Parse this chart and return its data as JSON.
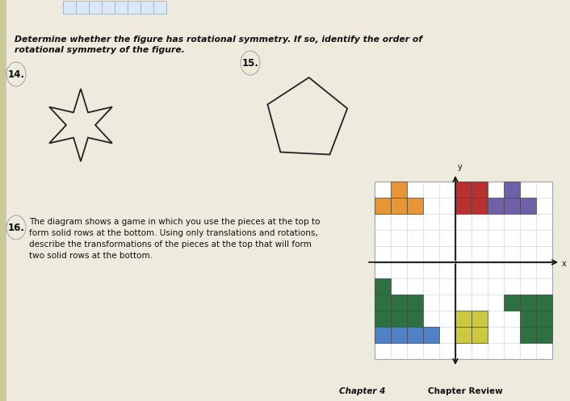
{
  "bg_color": "#cbc89a",
  "paper_color": "#eeeade",
  "title_text1": "Determine whether the figure has rotational symmetry. If so, identify the order of",
  "title_text2": "rotational symmetry of the figure.",
  "label_14": "14.",
  "label_15": "15.",
  "label_16": "16.",
  "text_16": "The diagram shows a game in which you use the pieces at the top to\nform solid rows at the bottom. Using only translations and rotations,\ndescribe the transformations of the pieces at the top that will form\ntwo solid rows at the bottom.",
  "footer_left": "Chapter 4",
  "footer_right": "Chapter Review",
  "grid_color": "#b8cfe8",
  "grid_bg": "#ffffff",
  "orange_color": "#e89535",
  "red_color": "#b83030",
  "purple_color": "#7060a8",
  "green_color": "#2e7040",
  "blue_color": "#5080c8",
  "yellow_color": "#ccc840",
  "axis_color": "#111111",
  "top_grid_color": "#9ab8d8"
}
